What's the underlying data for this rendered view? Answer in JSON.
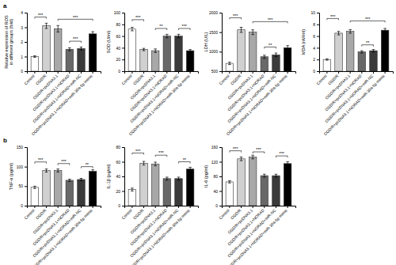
{
  "chart_data": [
    {
      "type": "bar",
      "title": "a",
      "grid": false,
      "ylabel": "Relative expression of ROS\nin different groups (fold)",
      "categories": [
        "Control",
        "OGD/R",
        "OGD/R+pcDNA3.1",
        "OGD/R+pcDNA3.1+NORAD",
        "OGD/R+pcDNA3.1+NORAD+miR-NC",
        "OGD/R+pcDNA3.1+NORAD+miR-30a-5p mimic"
      ],
      "colors": [
        "#ffffff",
        "#d0d0d0",
        "#a8a8a8",
        "#686868",
        "#3a3a3a",
        "#000000"
      ],
      "values": [
        1.0,
        3.1,
        2.9,
        1.5,
        1.55,
        2.55
      ],
      "errors": [
        0.05,
        0.18,
        0.22,
        0.1,
        0.1,
        0.15
      ],
      "ylim": [
        0,
        4
      ],
      "yticks": [
        0,
        1,
        2,
        3,
        4
      ],
      "annotations": [
        {
          "x1": "Control",
          "x2": "OGD/R",
          "y": 3.7,
          "label": "***"
        },
        {
          "x1": "OGD/R+pcDNA3.1",
          "x2": "OGD/R+pcDNA3.1+NORAD+miR-30a-5p mimic",
          "y": 3.55,
          "label": "***"
        },
        {
          "x1": "OGD/R+pcDNA3.1+NORAD",
          "x2": "OGD/R+pcDNA3.1+NORAD+miR-NC",
          "y": 2.05,
          "label": "***"
        }
      ]
    },
    {
      "type": "bar",
      "grid": false,
      "ylabel": "SOD (U/ml)",
      "categories": [
        "Control",
        "OGD/R",
        "OGD/R+pcDNA3.1",
        "OGD/R+pcDNA3.1+NORAD",
        "OGD/R+pcDNA3.1+NORAD+miR-NC",
        "OGD/R+pcDNA3.1+NORAD+miR-30a-5p mimic"
      ],
      "colors": [
        "#ffffff",
        "#d0d0d0",
        "#a8a8a8",
        "#686868",
        "#3a3a3a",
        "#000000"
      ],
      "values": [
        72,
        37,
        35,
        60,
        60,
        35
      ],
      "errors": [
        3,
        2,
        3,
        3,
        3,
        2
      ],
      "ylim": [
        0,
        100
      ],
      "yticks": [
        0,
        20,
        40,
        60,
        80,
        100
      ],
      "annotations": [
        {
          "x1": "Control",
          "x2": "OGD/R",
          "y": 88,
          "label": "***"
        },
        {
          "x1": "OGD/R+pcDNA3.1",
          "x2": "OGD/R+pcDNA3.1+NORAD",
          "y": 73,
          "label": "**"
        },
        {
          "x1": "OGD/R+pcDNA3.1+NORAD+miR-NC",
          "x2": "OGD/R+pcDNA3.1+NORAD+miR-30a-5p mimic",
          "y": 73,
          "label": "***"
        }
      ]
    },
    {
      "type": "bar",
      "grid": false,
      "ylabel": "LDH (U/L)",
      "categories": [
        "Control",
        "OGD/R",
        "OGD/R+pcDNA3.1",
        "OGD/R+pcDNA3.1+NORAD",
        "OGD/R+pcDNA3.1+NORAD+miR-NC",
        "OGD/R+pcDNA3.1+NORAD+miR-30a-5p mimic"
      ],
      "colors": [
        "#ffffff",
        "#d0d0d0",
        "#a8a8a8",
        "#686868",
        "#3a3a3a",
        "#000000"
      ],
      "values": [
        700,
        1560,
        1500,
        870,
        920,
        1100
      ],
      "errors": [
        30,
        65,
        60,
        40,
        45,
        55
      ],
      "ylim": [
        500,
        2000
      ],
      "yticks": [
        500,
        1000,
        1500,
        2000
      ],
      "annotations": [
        {
          "x1": "Control",
          "x2": "OGD/R",
          "y": 1870,
          "label": "***"
        },
        {
          "x1": "OGD/R+pcDNA3.1",
          "x2": "OGD/R+pcDNA3.1+NORAD+miR-30a-5p mimic",
          "y": 1770,
          "label": "***"
        },
        {
          "x1": "OGD/R+pcDNA3.1+NORAD",
          "x2": "OGD/R+pcDNA3.1+NORAD+miR-NC",
          "y": 1120,
          "label": "**"
        }
      ]
    },
    {
      "type": "bar",
      "grid": false,
      "ylabel": "MDA (nM/ml)",
      "categories": [
        "Control",
        "OGD/R",
        "OGD/R+pcDNA3.1",
        "OGD/R+pcDNA3.1+NORAD",
        "OGD/R+pcDNA3.1+NORAD+miR-NC",
        "OGD/R+pcDNA3.1+NORAD+miR-30a-5p mimic"
      ],
      "colors": [
        "#ffffff",
        "#d0d0d0",
        "#a8a8a8",
        "#686868",
        "#3a3a3a",
        "#000000"
      ],
      "values": [
        2.0,
        6.5,
        6.8,
        3.3,
        3.5,
        7.0
      ],
      "errors": [
        0.12,
        0.3,
        0.3,
        0.2,
        0.2,
        0.3
      ],
      "ylim": [
        0,
        10
      ],
      "yticks": [
        0,
        2,
        4,
        6,
        8,
        10
      ],
      "annotations": [
        {
          "x1": "Control",
          "x2": "OGD/R",
          "y": 9.0,
          "label": "***"
        },
        {
          "x1": "OGD/R+pcDNA3.1",
          "x2": "OGD/R+pcDNA3.1+NORAD+miR-30a-5p mimic",
          "y": 8.6,
          "label": "***"
        },
        {
          "x1": "OGD/R+pcDNA3.1+NORAD",
          "x2": "OGD/R+pcDNA3.1+NORAD+miR-NC",
          "y": 4.5,
          "label": "**"
        }
      ]
    },
    {
      "type": "bar",
      "title": "b",
      "grid": false,
      "ylabel": "TNF-α (pg/ml)",
      "categories": [
        "Control",
        "OGD/R",
        "OGD/R+pcDNA3.1",
        "OGD/R+pcDNA3.1+NORAD",
        "OGD/R+pcDNA3.1+NORAD+miR-NC",
        "OGD/R+pcDNA3.1+NORAD+miR-30a-5p mimic"
      ],
      "colors": [
        "#ffffff",
        "#d0d0d0",
        "#a8a8a8",
        "#686868",
        "#3a3a3a",
        "#000000"
      ],
      "values": [
        47,
        90,
        90,
        65,
        67,
        88
      ],
      "errors": [
        3,
        4,
        4,
        3,
        3,
        4
      ],
      "ylim": [
        0,
        150
      ],
      "yticks": [
        0,
        50,
        100,
        150
      ],
      "annotations": [
        {
          "x1": "Control",
          "x2": "OGD/R",
          "y": 112,
          "label": "***"
        },
        {
          "x1": "OGD/R+pcDNA3.1",
          "x2": "OGD/R+pcDNA3.1+NORAD",
          "y": 108,
          "label": "***"
        },
        {
          "x1": "OGD/R+pcDNA3.1+NORAD+miR-NC",
          "x2": "OGD/R+pcDNA3.1+NORAD+miR-30a-5p mimic",
          "y": 100,
          "label": "**"
        }
      ]
    },
    {
      "type": "bar",
      "grid": false,
      "ylabel": "IL-1β (pg/ml)",
      "categories": [
        "Control",
        "OGD/R",
        "OGD/R+pcDNA3.1",
        "OGD/R+pcDNA3.1+NORAD",
        "OGD/R+pcDNA3.1+NORAD+miR-NC",
        "OGD/R+pcDNA3.1+NORAD+miR-30a-5p mimic"
      ],
      "colors": [
        "#ffffff",
        "#d0d0d0",
        "#a8a8a8",
        "#686868",
        "#3a3a3a",
        "#000000"
      ],
      "values": [
        22,
        58,
        57,
        37,
        37,
        50
      ],
      "errors": [
        2,
        2.5,
        2.5,
        2,
        2,
        2.5
      ],
      "ylim": [
        0,
        80
      ],
      "yticks": [
        0,
        20,
        40,
        60,
        80
      ],
      "annotations": [
        {
          "x1": "Control",
          "x2": "OGD/R",
          "y": 72,
          "label": "***"
        },
        {
          "x1": "OGD/R+pcDNA3.1",
          "x2": "OGD/R+pcDNA3.1+NORAD",
          "y": 69,
          "label": "***"
        },
        {
          "x1": "OGD/R+pcDNA3.1+NORAD+miR-NC",
          "x2": "OGD/R+pcDNA3.1+NORAD+miR-30a-5p mimic",
          "y": 60,
          "label": "**"
        }
      ]
    },
    {
      "type": "bar",
      "grid": false,
      "ylabel": "IL-6 (pg/ml)",
      "categories": [
        "Control",
        "OGD/R",
        "OGD/R+pcDNA3.1",
        "OGD/R+pcDNA3.1+NORAD",
        "OGD/R+pcDNA3.1+NORAD+miR-NC",
        "OGD/R+pcDNA3.1+NORAD+miR-30a-5p mimic"
      ],
      "colors": [
        "#ffffff",
        "#d0d0d0",
        "#a8a8a8",
        "#686868",
        "#3a3a3a",
        "#000000"
      ],
      "values": [
        65,
        128,
        133,
        82,
        82,
        115
      ],
      "errors": [
        3,
        5,
        5,
        4,
        4,
        5
      ],
      "ylim": [
        0,
        160
      ],
      "yticks": [
        0,
        40,
        80,
        120,
        160
      ],
      "annotations": [
        {
          "x1": "Control",
          "x2": "OGD/R",
          "y": 150,
          "label": "***"
        },
        {
          "x1": "OGD/R+pcDNA3.1",
          "x2": "OGD/R+pcDNA3.1+NORAD",
          "y": 147,
          "label": "***"
        },
        {
          "x1": "OGD/R+pcDNA3.1+NORAD+miR-NC",
          "x2": "OGD/R+pcDNA3.1+NORAD+miR-30a-5p mimic",
          "y": 136,
          "label": "***"
        }
      ]
    }
  ]
}
